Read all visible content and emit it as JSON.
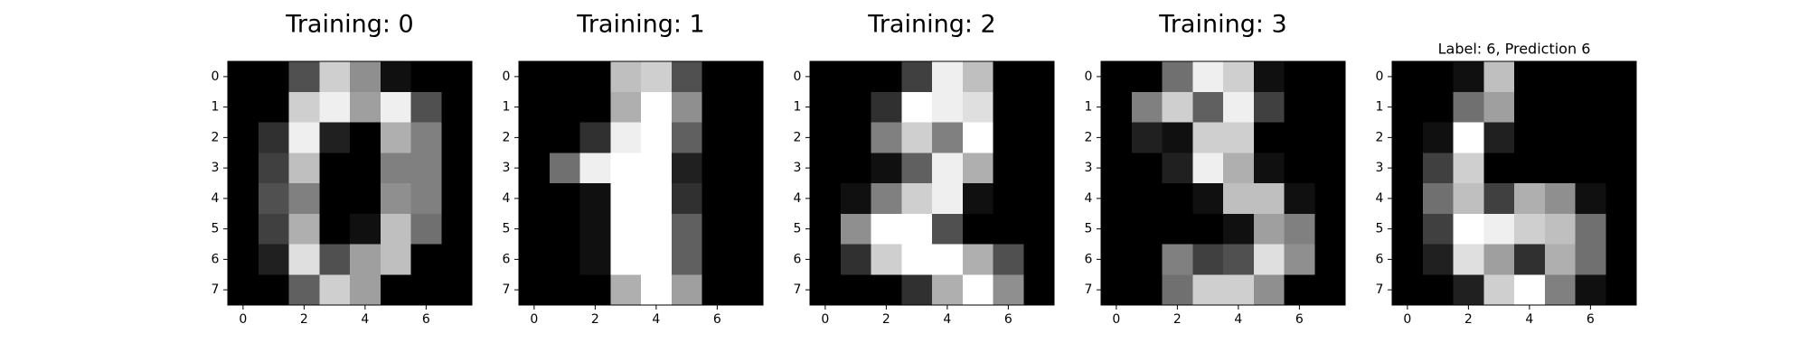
{
  "chart_data": [
    {
      "type": "heatmap",
      "title": "Training: 0",
      "colormap": "gray",
      "value_range": [
        0,
        16
      ],
      "xticks": [
        0,
        2,
        4,
        6
      ],
      "yticks": [
        0,
        1,
        2,
        3,
        4,
        5,
        6,
        7
      ],
      "values": [
        [
          0,
          0,
          5,
          13,
          9,
          1,
          0,
          0
        ],
        [
          0,
          0,
          13,
          15,
          10,
          15,
          5,
          0
        ],
        [
          0,
          3,
          15,
          2,
          0,
          11,
          8,
          0
        ],
        [
          0,
          4,
          12,
          0,
          0,
          8,
          8,
          0
        ],
        [
          0,
          5,
          8,
          0,
          0,
          9,
          8,
          0
        ],
        [
          0,
          4,
          11,
          0,
          1,
          12,
          7,
          0
        ],
        [
          0,
          2,
          14,
          5,
          10,
          12,
          0,
          0
        ],
        [
          0,
          0,
          6,
          13,
          10,
          0,
          0,
          0
        ]
      ]
    },
    {
      "type": "heatmap",
      "title": "Training: 1",
      "colormap": "gray",
      "value_range": [
        0,
        16
      ],
      "xticks": [
        0,
        2,
        4,
        6
      ],
      "yticks": [
        0,
        1,
        2,
        3,
        4,
        5,
        6,
        7
      ],
      "values": [
        [
          0,
          0,
          0,
          12,
          13,
          5,
          0,
          0
        ],
        [
          0,
          0,
          0,
          11,
          16,
          9,
          0,
          0
        ],
        [
          0,
          0,
          3,
          15,
          16,
          6,
          0,
          0
        ],
        [
          0,
          7,
          15,
          16,
          16,
          2,
          0,
          0
        ],
        [
          0,
          0,
          1,
          16,
          16,
          3,
          0,
          0
        ],
        [
          0,
          0,
          1,
          16,
          16,
          6,
          0,
          0
        ],
        [
          0,
          0,
          1,
          16,
          16,
          6,
          0,
          0
        ],
        [
          0,
          0,
          0,
          11,
          16,
          10,
          0,
          0
        ]
      ]
    },
    {
      "type": "heatmap",
      "title": "Training: 2",
      "colormap": "gray",
      "value_range": [
        0,
        16
      ],
      "xticks": [
        0,
        2,
        4,
        6
      ],
      "yticks": [
        0,
        1,
        2,
        3,
        4,
        5,
        6,
        7
      ],
      "values": [
        [
          0,
          0,
          0,
          4,
          15,
          12,
          0,
          0
        ],
        [
          0,
          0,
          3,
          16,
          15,
          14,
          0,
          0
        ],
        [
          0,
          0,
          8,
          13,
          8,
          16,
          0,
          0
        ],
        [
          0,
          0,
          1,
          6,
          15,
          11,
          0,
          0
        ],
        [
          0,
          1,
          8,
          13,
          15,
          1,
          0,
          0
        ],
        [
          0,
          9,
          16,
          16,
          5,
          0,
          0,
          0
        ],
        [
          0,
          3,
          13,
          16,
          16,
          11,
          5,
          0
        ],
        [
          0,
          0,
          0,
          3,
          11,
          16,
          9,
          0
        ]
      ]
    },
    {
      "type": "heatmap",
      "title": "Training: 3",
      "colormap": "gray",
      "value_range": [
        0,
        16
      ],
      "xticks": [
        0,
        2,
        4,
        6
      ],
      "yticks": [
        0,
        1,
        2,
        3,
        4,
        5,
        6,
        7
      ],
      "values": [
        [
          0,
          0,
          7,
          15,
          13,
          1,
          0,
          0
        ],
        [
          0,
          8,
          13,
          6,
          15,
          4,
          0,
          0
        ],
        [
          0,
          2,
          1,
          13,
          13,
          0,
          0,
          0
        ],
        [
          0,
          0,
          2,
          15,
          11,
          1,
          0,
          0
        ],
        [
          0,
          0,
          0,
          1,
          12,
          12,
          1,
          0
        ],
        [
          0,
          0,
          0,
          0,
          1,
          10,
          8,
          0
        ],
        [
          0,
          0,
          8,
          4,
          5,
          14,
          9,
          0
        ],
        [
          0,
          0,
          7,
          13,
          13,
          9,
          0,
          0
        ]
      ]
    },
    {
      "type": "heatmap",
      "title": "Label: 6, Prediction 6",
      "colormap": "gray",
      "value_range": [
        0,
        16
      ],
      "xticks": [
        0,
        2,
        4,
        6
      ],
      "yticks": [
        0,
        1,
        2,
        3,
        4,
        5,
        6,
        7
      ],
      "values": [
        [
          0,
          0,
          1,
          12,
          0,
          0,
          0,
          0
        ],
        [
          0,
          0,
          7,
          10,
          0,
          0,
          0,
          0
        ],
        [
          0,
          1,
          16,
          2,
          0,
          0,
          0,
          0
        ],
        [
          0,
          4,
          13,
          0,
          0,
          0,
          0,
          0
        ],
        [
          0,
          7,
          12,
          4,
          11,
          9,
          1,
          0
        ],
        [
          0,
          4,
          16,
          15,
          13,
          12,
          7,
          0
        ],
        [
          0,
          2,
          14,
          10,
          3,
          11,
          7,
          0
        ],
        [
          0,
          0,
          2,
          13,
          16,
          8,
          1,
          0
        ]
      ]
    }
  ]
}
